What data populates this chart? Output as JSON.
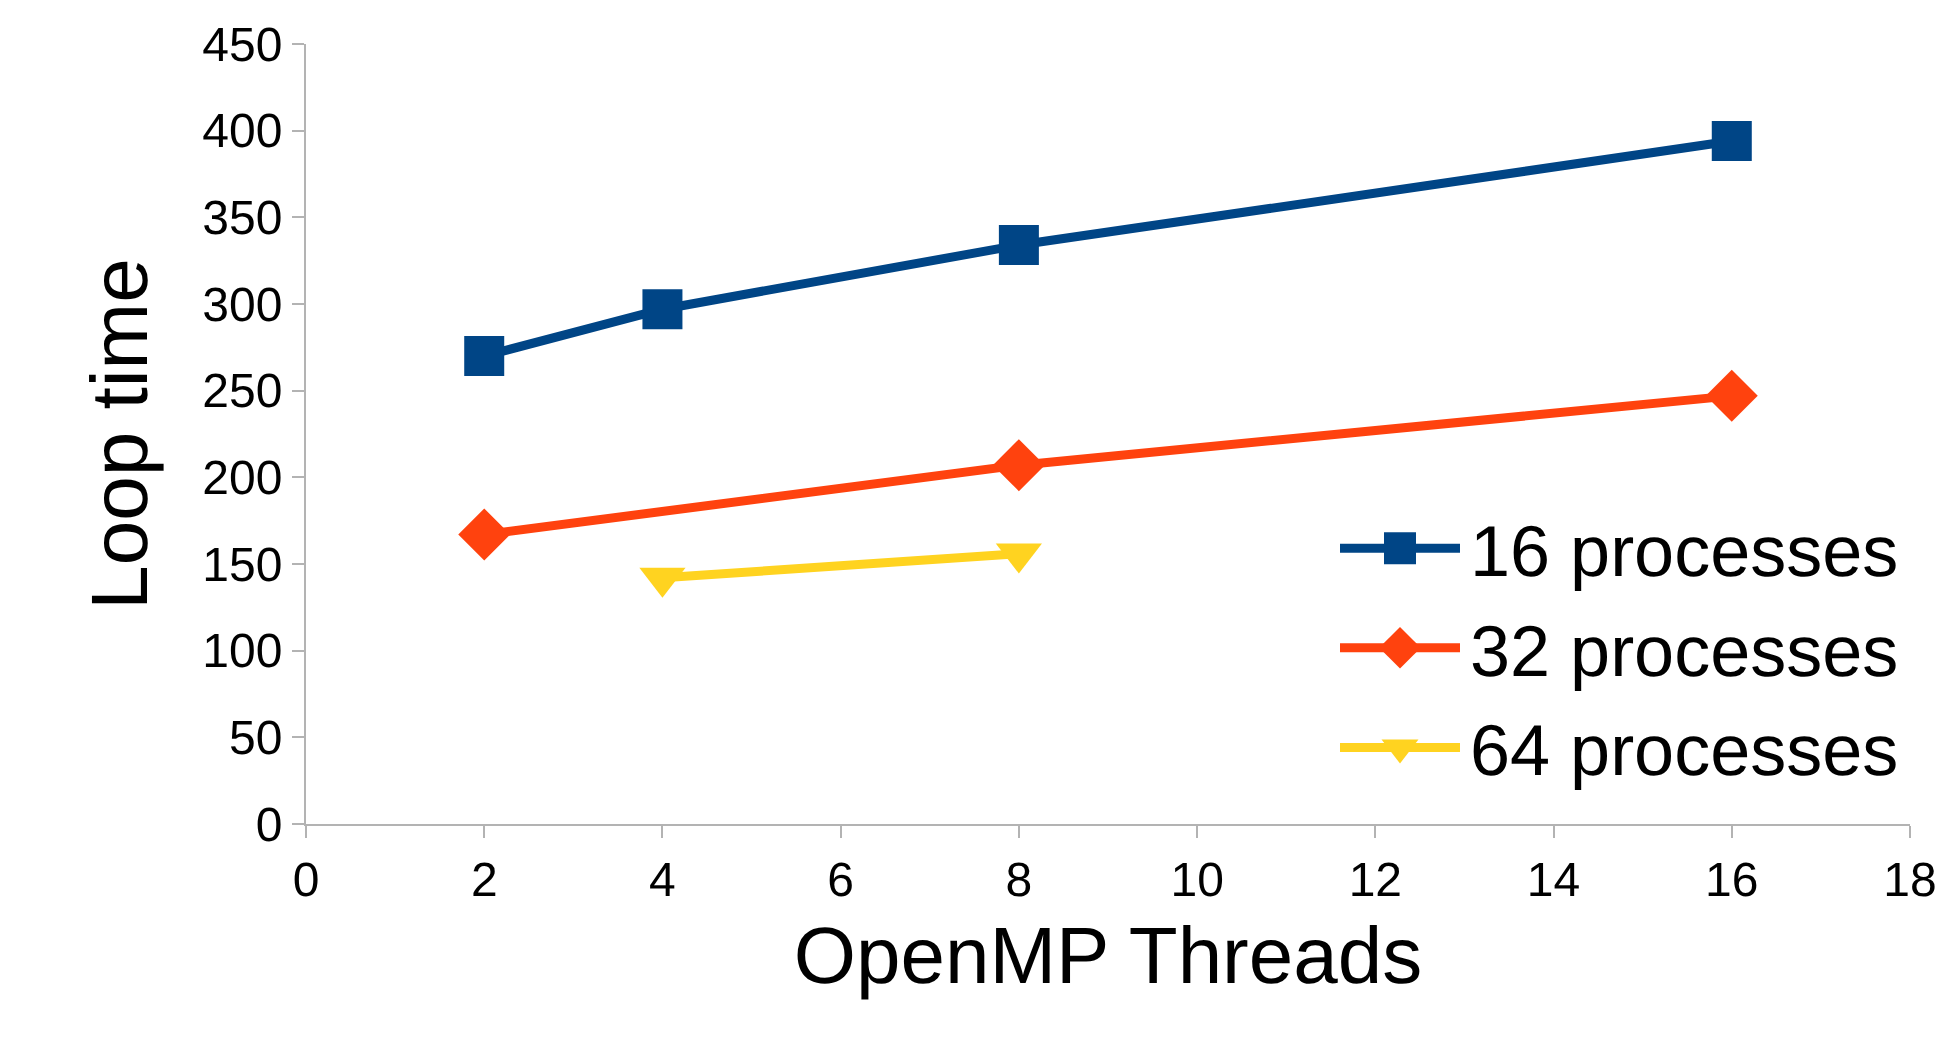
{
  "chart_data": {
    "type": "line",
    "xlabel": "OpenMP Threads",
    "ylabel": "Loop time",
    "xlim": [
      0,
      18
    ],
    "xticks": [
      0,
      2,
      4,
      6,
      8,
      10,
      12,
      14,
      16,
      18
    ],
    "ylim": [
      0,
      450
    ],
    "yticks": [
      0,
      50,
      100,
      150,
      200,
      250,
      300,
      350,
      400,
      450
    ],
    "grid": false,
    "legend": "bottom right",
    "series": [
      {
        "name": "16 processes",
        "color": "#004586",
        "marker": "square",
        "x": [
          2,
          4,
          8,
          16
        ],
        "values": [
          270,
          297,
          334,
          394
        ]
      },
      {
        "name": "32 processes",
        "color": "#ff420e",
        "marker": "diamond",
        "x": [
          2,
          8,
          16
        ],
        "values": [
          167,
          207,
          247
        ]
      },
      {
        "name": "64 processes",
        "color": "#ffd320",
        "marker": "triangle",
        "x": [
          4,
          8
        ],
        "values": [
          142,
          156
        ]
      }
    ]
  }
}
